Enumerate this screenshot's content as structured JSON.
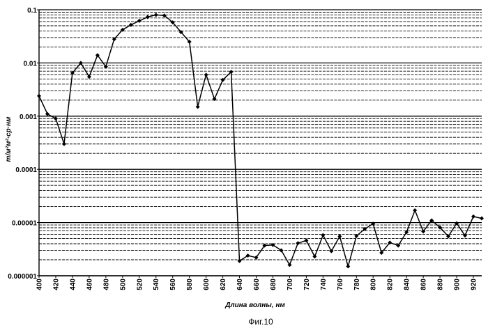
{
  "caption": "Фиг.10",
  "chart_data": {
    "type": "line",
    "title": "",
    "xlabel": "Длина волны, нм",
    "ylabel": "т/м²м²·ср·нм",
    "yscale": "log",
    "xlim": [
      400,
      930
    ],
    "ylim": [
      1e-06,
      0.1
    ],
    "grid": true,
    "x_ticks": [
      "400",
      "420",
      "440",
      "460",
      "480",
      "500",
      "520",
      "540",
      "560",
      "580",
      "600",
      "620",
      "640",
      "660",
      "680",
      "700",
      "720",
      "740",
      "760",
      "780",
      "800",
      "820",
      "840",
      "860",
      "880",
      "900",
      "920"
    ],
    "y_ticks": [
      "0.1",
      "0.01",
      "0.001",
      "0.0001",
      "0.00001",
      "0.000001"
    ],
    "line_color": "#000000",
    "series": [
      {
        "x": [
          400,
          410,
          420,
          430,
          440,
          450,
          460,
          470,
          480,
          490,
          500,
          510,
          520,
          530,
          540,
          550,
          560,
          570,
          580,
          590,
          600,
          610,
          620,
          630,
          640,
          650,
          660,
          670,
          680,
          690,
          700,
          710,
          720,
          730,
          740,
          750,
          760,
          770,
          780,
          790,
          800,
          810,
          820,
          830,
          840,
          850,
          860,
          870,
          880,
          890,
          900,
          910,
          920,
          930
        ],
        "values": [
          0.0024,
          0.0011,
          0.0009,
          0.0003,
          0.0065,
          0.01,
          0.0055,
          0.014,
          0.0085,
          0.028,
          0.042,
          0.052,
          0.062,
          0.073,
          0.08,
          0.078,
          0.058,
          0.038,
          0.025,
          0.0015,
          0.006,
          0.0021,
          0.0048,
          0.0068,
          1.9e-06,
          2.4e-06,
          2.2e-06,
          3.7e-06,
          3.8e-06,
          3e-06,
          1.6e-06,
          4.1e-06,
          4.6e-06,
          2.3e-06,
          5.8e-06,
          2.9e-06,
          5.5e-06,
          1.5e-06,
          5.6e-06,
          7.6e-06,
          9.5e-06,
          2.7e-06,
          4.2e-06,
          3.7e-06,
          6.6e-06,
          1.7e-05,
          6.8e-06,
          1.1e-05,
          8.1e-06,
          5.5e-06,
          9.7e-06,
          5.7e-06,
          1.3e-05,
          1.2e-05
        ]
      }
    ]
  }
}
